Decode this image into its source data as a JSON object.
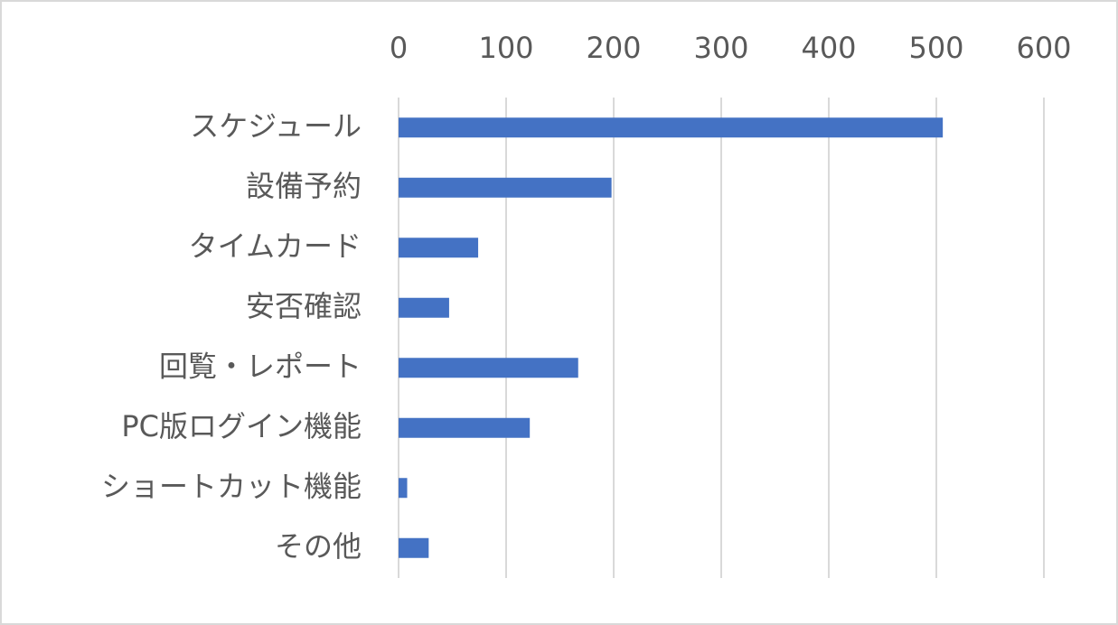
{
  "chart_data": {
    "type": "bar",
    "orientation": "horizontal",
    "categories": [
      "スケジュール",
      "設備予約",
      "タイムカード",
      "安否確認",
      "回覧・レポート",
      "PC版ログイン機能",
      "ショートカット機能",
      "その他"
    ],
    "values": [
      506,
      198,
      74,
      47,
      167,
      122,
      8,
      28
    ],
    "color": "#4472c4",
    "xlim": [
      0,
      600
    ],
    "xticks": [
      0,
      100,
      200,
      300,
      400,
      500,
      600
    ],
    "grid": true
  }
}
